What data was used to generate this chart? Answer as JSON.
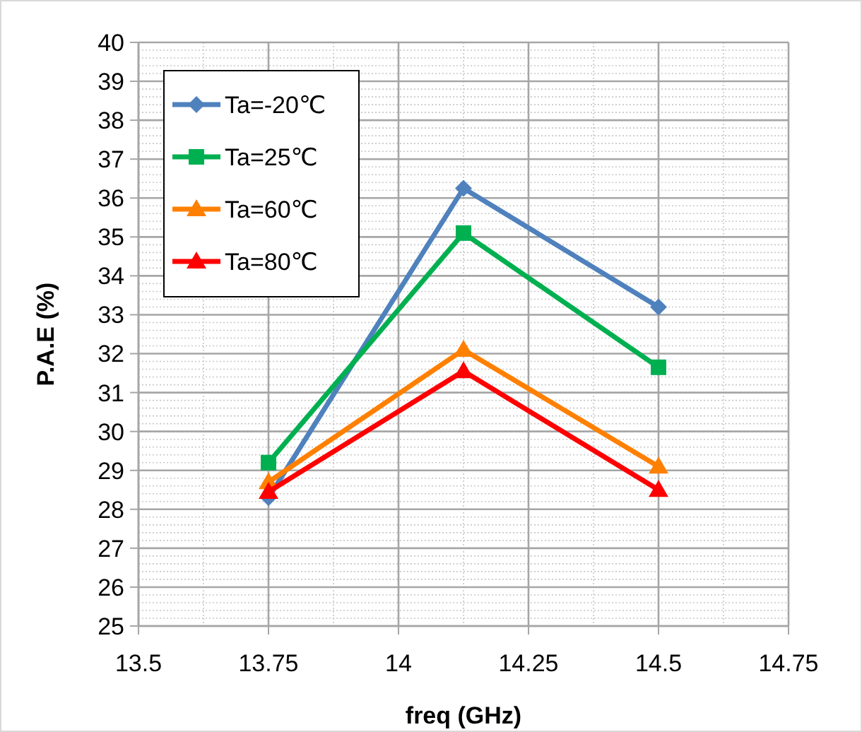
{
  "chart_data": {
    "type": "line",
    "xlabel": "freq (GHz)",
    "ylabel": "P.A.E (%)",
    "x": [
      13.75,
      14.125,
      14.5
    ],
    "xlim": [
      13.5,
      14.75
    ],
    "xticks": [
      13.5,
      13.75,
      14,
      14.25,
      14.5,
      14.75
    ],
    "ylim": [
      25,
      40
    ],
    "yticks": [
      25,
      26,
      27,
      28,
      29,
      30,
      31,
      32,
      33,
      34,
      35,
      36,
      37,
      38,
      39,
      40
    ],
    "grid": true,
    "legend": "top left",
    "line_style": "solid",
    "series": [
      {
        "name": "Ta=-20℃",
        "color": "#4f81bd",
        "marker": "diamond",
        "values": [
          28.3,
          36.25,
          33.2
        ]
      },
      {
        "name": "Ta=25℃",
        "color": "#00b050",
        "marker": "square",
        "values": [
          29.2,
          35.1,
          31.65
        ]
      },
      {
        "name": "Ta=60℃",
        "color": "#ff8000",
        "marker": "triangle",
        "values": [
          28.7,
          32.1,
          29.1
        ]
      },
      {
        "name": "Ta=80℃",
        "color": "#ff0000",
        "marker": "triangle",
        "values": [
          28.45,
          31.55,
          28.5
        ]
      }
    ]
  }
}
